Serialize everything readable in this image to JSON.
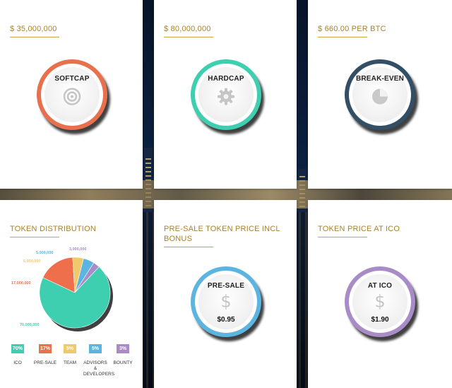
{
  "cards": {
    "softcap": {
      "title": "$ 35,000,000",
      "label": "SOFTCAP",
      "color": "#e8704d"
    },
    "hardcap": {
      "title": "$ 80,000,000",
      "label": "HARDCAP",
      "color": "#3dcfb0"
    },
    "breakeven": {
      "title": "$ 660.00 PER BTC",
      "label": "BREAK-EVEN",
      "color": "#324f66"
    },
    "presale": {
      "title": "PRE-SALE TOKEN PRICE INCL BONUS",
      "label": "PRE-SALE",
      "price": "$0.95",
      "color": "#5bb5e0"
    },
    "ico": {
      "title": "TOKEN PRICE AT ICO",
      "label": "AT ICO",
      "price": "$1.90",
      "color": "#a98cc7"
    }
  },
  "distribution": {
    "title": "TOKEN DISTRIBUTION",
    "icons": {
      "pie": "pie-chart-icon",
      "gear": "gear-icon",
      "target": "target-icon",
      "dollar": "dollar-icon"
    }
  },
  "chart_data": {
    "type": "pie",
    "title": "TOKEN DISTRIBUTION",
    "series": [
      {
        "name": "ICO",
        "percent": "70%",
        "value": 70000000,
        "value_label": "70,000,000",
        "color": "#3dcfb0"
      },
      {
        "name": "PRE-SALE",
        "percent": "17%",
        "value": 17000000,
        "value_label": "17,000,000",
        "color": "#ef6e4c"
      },
      {
        "name": "TEAM",
        "percent": "5%",
        "value": 5000000,
        "value_label": "5,000,000",
        "color": "#f1c96d"
      },
      {
        "name": "ADVISORS & DEVELOPERS",
        "percent": "5%",
        "value": 5000000,
        "value_label": "5,000,000",
        "color": "#5bb5e0"
      },
      {
        "name": "BOUNTY",
        "percent": "3%",
        "value": 3000000,
        "value_label": "3,000,000",
        "color": "#a98cc7"
      }
    ]
  }
}
